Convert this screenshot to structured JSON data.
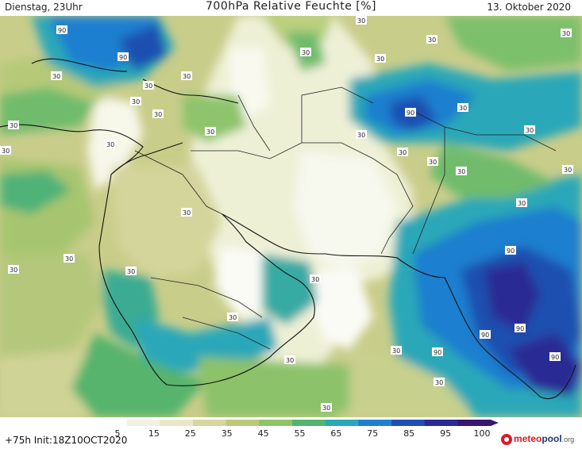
{
  "header": {
    "left": "Dienstag, 23Uhr",
    "title": "700hPa Relative Feuchte [%]",
    "right": "13. Oktober 2020"
  },
  "colorbar": {
    "ticks": [
      "5",
      "15",
      "25",
      "35",
      "45",
      "55",
      "65",
      "75",
      "85",
      "95",
      "100"
    ],
    "colors": [
      "#ffffff",
      "#f3f1e4",
      "#e9e7c6",
      "#d6d6a1",
      "#bcc97b",
      "#8fc36a",
      "#53b470",
      "#2ba7b8",
      "#1f7fcf",
      "#1f4fb0",
      "#2c2a94",
      "#3a1670"
    ]
  },
  "footer": {
    "init": "+75h Init:18Z10OCT2020"
  },
  "brand": {
    "part1": "meteo",
    "part2": "pool",
    "part3": ".org"
  },
  "contour_labels": [
    {
      "id": "l1",
      "text": "90"
    },
    {
      "id": "l2",
      "text": "30"
    },
    {
      "id": "l3",
      "text": "30"
    },
    {
      "id": "l4",
      "text": "90"
    },
    {
      "id": "l5",
      "text": "30"
    },
    {
      "id": "l6",
      "text": "30"
    },
    {
      "id": "l7",
      "text": "30"
    },
    {
      "id": "l8",
      "text": "30"
    },
    {
      "id": "l9",
      "text": "30"
    },
    {
      "id": "l10",
      "text": "30"
    },
    {
      "id": "l11",
      "text": "30"
    },
    {
      "id": "l12",
      "text": "30"
    },
    {
      "id": "l13",
      "text": "30"
    },
    {
      "id": "l14",
      "text": "30"
    },
    {
      "id": "l15",
      "text": "30"
    },
    {
      "id": "l16",
      "text": "90"
    },
    {
      "id": "l17",
      "text": "30"
    },
    {
      "id": "l18",
      "text": "30"
    },
    {
      "id": "l19",
      "text": "30"
    },
    {
      "id": "l20",
      "text": "30"
    },
    {
      "id": "l21",
      "text": "30"
    },
    {
      "id": "l22",
      "text": "30"
    },
    {
      "id": "l23",
      "text": "30"
    },
    {
      "id": "l24",
      "text": "30"
    },
    {
      "id": "l25",
      "text": "30"
    },
    {
      "id": "l26",
      "text": "30"
    },
    {
      "id": "l27",
      "text": "30"
    },
    {
      "id": "l28",
      "text": "30"
    },
    {
      "id": "l29",
      "text": "30"
    },
    {
      "id": "l30",
      "text": "90"
    },
    {
      "id": "l31",
      "text": "90"
    },
    {
      "id": "l32",
      "text": "90"
    },
    {
      "id": "l33",
      "text": "90"
    },
    {
      "id": "l34",
      "text": "90"
    },
    {
      "id": "l35",
      "text": "30"
    },
    {
      "id": "l36",
      "text": "30"
    },
    {
      "id": "l37",
      "text": "30"
    },
    {
      "id": "l38",
      "text": "30"
    },
    {
      "id": "l39",
      "text": "30"
    },
    {
      "id": "l40",
      "text": "30"
    }
  ]
}
